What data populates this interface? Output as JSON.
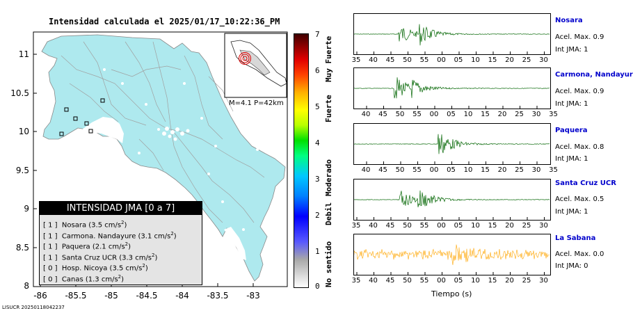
{
  "title": "Intensidad calculada el 2025/01/17_10:22:36_PM",
  "map": {
    "lat_ticks": [
      "11",
      "10.5",
      "10",
      "9.5",
      "9",
      "8.5",
      "8"
    ],
    "lon_ticks": [
      "-86",
      "-85.5",
      "-85",
      "-84.5",
      "-84",
      "-83.5",
      "-83"
    ],
    "land_color": "#aee9ee",
    "inset_label": "M=4.1 P=42km"
  },
  "legend": {
    "title": "INTENSIDAD JMA [0 a 7]",
    "rows": [
      {
        "level": "[ 1 ]",
        "text": "Nosara (3.5 cm/s",
        "unit_exp": "2",
        "close": ")"
      },
      {
        "level": "[ 1 ]",
        "text": "Carmona. Nandayure (3.1 cm/s",
        "unit_exp": "2",
        "close": ")"
      },
      {
        "level": "[ 1 ]",
        "text": "Paquera (2.1 cm/s",
        "unit_exp": "2",
        "close": ")"
      },
      {
        "level": "[ 1 ]",
        "text": "Santa Cruz UCR (3.3 cm/s",
        "unit_exp": "2",
        "close": ")"
      },
      {
        "level": "[ 0 ]",
        "text": "Hosp. Nicoya (3.5 cm/s",
        "unit_exp": "2",
        "close": ")"
      },
      {
        "level": "[ 0 ]",
        "text": "Canas (1.3 cm/s",
        "unit_exp": "2",
        "close": ")"
      }
    ]
  },
  "colorbar": {
    "numbers": [
      "7",
      "6",
      "5",
      "4",
      "3",
      "2",
      "1",
      "0"
    ],
    "words": [
      "Muy Fuerte",
      "Fuerte",
      "Moderado",
      "Debil",
      "No sentido"
    ]
  },
  "stations": [
    {
      "name": "Nosara",
      "acel": "Acel. Max. 0.9",
      "int": "Int JMA: 1",
      "ticks": [
        "35",
        "40",
        "45",
        "50",
        "55",
        "00",
        "05",
        "10",
        "15",
        "20",
        "25",
        "30"
      ],
      "color": "#006400"
    },
    {
      "name": "Carmona, Nandayure",
      "acel": "Acel. Max. 0.9",
      "int": "Int JMA: 1",
      "ticks": [
        "40",
        "45",
        "50",
        "55",
        "00",
        "05",
        "10",
        "15",
        "20",
        "25",
        "30",
        "35"
      ],
      "color": "#006400"
    },
    {
      "name": "Paquera",
      "acel": "Acel. Max. 0.8",
      "int": "Int JMA: 1",
      "ticks": [
        "40",
        "45",
        "50",
        "55",
        "00",
        "05",
        "10",
        "15",
        "20",
        "25",
        "30",
        "35"
      ],
      "color": "#006400"
    },
    {
      "name": "Santa Cruz UCR",
      "acel": "Acel. Max. 0.5",
      "int": "Int JMA: 1",
      "ticks": [
        "35",
        "40",
        "45",
        "50",
        "55",
        "00",
        "05",
        "10",
        "15",
        "20",
        "25",
        "30"
      ],
      "color": "#006400"
    },
    {
      "name": "La Sabana",
      "acel": "Acel. Max. 0.0",
      "int": "Int JMA: 0",
      "ticks": [
        "35",
        "40",
        "45",
        "50",
        "55",
        "00",
        "05",
        "10",
        "15",
        "20",
        "25",
        "30"
      ],
      "color": "#ffa500"
    }
  ],
  "xlabel": "Tiempo (s)",
  "footer": "LISUCR 20250118042237"
}
